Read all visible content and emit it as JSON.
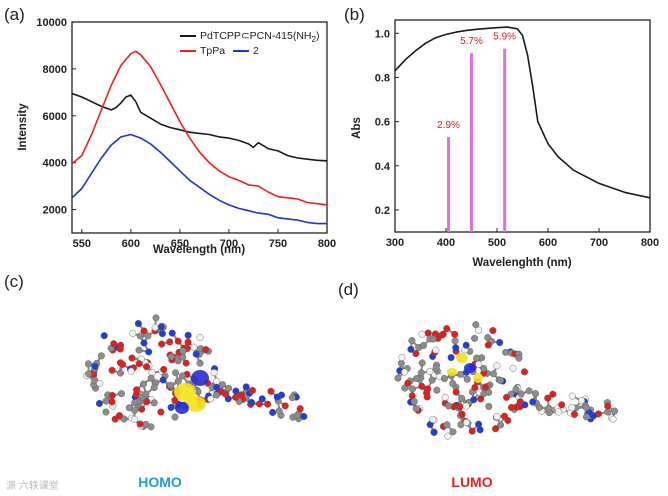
{
  "panels": {
    "a": "(a)",
    "b": "(b)",
    "c": "(c)",
    "d": "(d)"
  },
  "chart_data": [
    {
      "type": "line",
      "title": "",
      "xlabel": "Wavelength (nm)",
      "ylabel": "Intensity",
      "xlim": [
        540,
        800
      ],
      "ylim": [
        1000,
        10000
      ],
      "xticks": [
        550,
        600,
        650,
        700,
        750,
        800
      ],
      "yticks": [
        2000,
        4000,
        6000,
        8000,
        10000
      ],
      "legend_position": "top-right",
      "series": [
        {
          "name": "PdTCPP⊂PCN-415(NH2)",
          "legend_label": "PdTCPP⊂PCN-415(NH",
          "legend_subscript": "2",
          "legend_suffix": ")",
          "color": "#1a1a1a",
          "x": [
            540,
            550,
            560,
            570,
            580,
            585,
            590,
            595,
            600,
            605,
            610,
            620,
            630,
            640,
            650,
            660,
            670,
            680,
            690,
            700,
            710,
            720,
            725,
            730,
            740,
            750,
            760,
            770,
            780,
            790,
            800
          ],
          "y": [
            6950,
            6800,
            6600,
            6400,
            6250,
            6350,
            6550,
            6800,
            6880,
            6600,
            6150,
            5900,
            5650,
            5500,
            5400,
            5300,
            5250,
            5200,
            5100,
            5050,
            4950,
            4800,
            4650,
            4850,
            4600,
            4500,
            4300,
            4200,
            4150,
            4100,
            4080
          ]
        },
        {
          "name": "TpPa",
          "legend_label": "TpPa",
          "color": "#e8211d",
          "x": [
            540,
            550,
            560,
            570,
            580,
            590,
            600,
            605,
            610,
            620,
            630,
            640,
            650,
            660,
            670,
            680,
            690,
            700,
            710,
            720,
            730,
            740,
            750,
            760,
            770,
            780,
            790,
            800
          ],
          "y": [
            3950,
            4300,
            5200,
            6250,
            7300,
            8150,
            8650,
            8750,
            8600,
            8100,
            7350,
            6550,
            5750,
            5050,
            4450,
            4000,
            3650,
            3400,
            3250,
            3050,
            3000,
            2750,
            2550,
            2500,
            2450,
            2300,
            2250,
            2200
          ]
        },
        {
          "name": "2",
          "legend_label": "2",
          "color": "#2132d8",
          "x": [
            540,
            550,
            560,
            570,
            580,
            590,
            600,
            610,
            620,
            630,
            640,
            650,
            660,
            670,
            680,
            690,
            700,
            710,
            720,
            730,
            740,
            750,
            760,
            770,
            780,
            790,
            800
          ],
          "y": [
            2500,
            2900,
            3550,
            4200,
            4750,
            5100,
            5200,
            5050,
            4800,
            4450,
            4050,
            3650,
            3250,
            2950,
            2650,
            2400,
            2200,
            2050,
            1950,
            1850,
            1800,
            1650,
            1600,
            1550,
            1450,
            1400,
            1400
          ]
        }
      ]
    },
    {
      "type": "line",
      "title": "",
      "xlabel": "Wavelenghth (nm)",
      "ylabel": "Abs",
      "xlim": [
        300,
        800
      ],
      "ylim": [
        0.1,
        1.06
      ],
      "xticks": [
        300,
        400,
        500,
        600,
        700,
        800
      ],
      "yticks": [
        0.2,
        0.4,
        0.6,
        0.8,
        1.0
      ],
      "ytick_labels": [
        "0.2",
        "0.4",
        "0.6",
        "0.8",
        "1.0"
      ],
      "series": [
        {
          "name": "absorbance",
          "color": "#1a1a1a",
          "x": [
            300,
            320,
            340,
            360,
            380,
            400,
            420,
            440,
            460,
            480,
            500,
            520,
            540,
            550,
            560,
            570,
            580,
            600,
            620,
            650,
            700,
            750,
            800
          ],
          "y": [
            0.83,
            0.88,
            0.92,
            0.955,
            0.98,
            0.995,
            1.005,
            1.013,
            1.018,
            1.022,
            1.025,
            1.028,
            1.02,
            0.99,
            0.9,
            0.76,
            0.6,
            0.5,
            0.44,
            0.38,
            0.32,
            0.28,
            0.255
          ]
        }
      ],
      "bars": {
        "color": "#e46ee0",
        "items": [
          {
            "x": 405,
            "value": 0.53,
            "label": "2.9%"
          },
          {
            "x": 450,
            "value": 0.91,
            "label": "5.7%"
          },
          {
            "x": 515,
            "value": 0.93,
            "label": "5.9%"
          }
        ]
      }
    }
  ],
  "orbitals": {
    "homo_label": "HOMO",
    "homo_color": "#1d9be2",
    "lumo_label": "LUMO",
    "lumo_color": "#e8211d"
  },
  "watermark": "源 六轶课堂"
}
